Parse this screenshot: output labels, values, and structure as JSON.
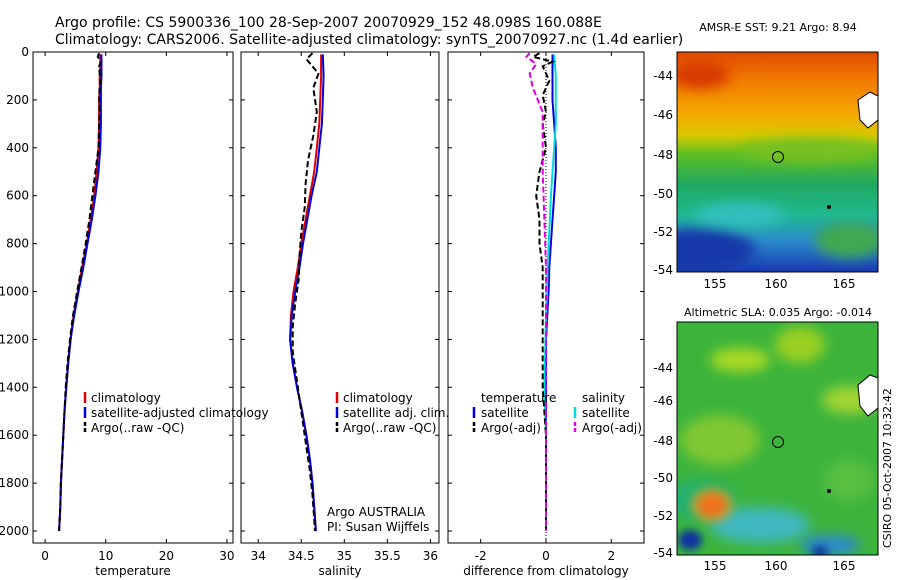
{
  "header": {
    "line1": "Argo profile: CS 5900336_100 28-Sep-2007 20070929_152 48.098S 160.088E",
    "line2": "Climatology: CARS2006. Satellite-adjusted climatology: synTS_20070927.nc (1.4d earlier)"
  },
  "side_label": "CSIRO 05-Oct-2007 10:32:42",
  "colors": {
    "climatology": "#e00000",
    "satellite": "#0000dd",
    "argo": "#000000",
    "satellite_diff": "#00dddd",
    "argo_adj_salinity": "#dd00dd"
  },
  "chart_data": [
    {
      "type": "line",
      "panel": "temperature",
      "xlabel": "temperature",
      "ylabel": "",
      "xlim": [
        -2,
        31
      ],
      "ylim": [
        2050,
        0
      ],
      "xticks": [
        "0",
        "10",
        "20",
        "30"
      ],
      "xtick_values": [
        0,
        10,
        20,
        30
      ],
      "yticks": [
        "0",
        "200",
        "400",
        "600",
        "800",
        "1000",
        "1200",
        "1400",
        "1600",
        "1800",
        "2000"
      ],
      "ytick_values": [
        0,
        200,
        400,
        600,
        800,
        1000,
        1200,
        1400,
        1600,
        1800,
        2000
      ],
      "legend": [
        "climatology",
        "satellite-adjusted climatology",
        "Argo(..raw -QC)"
      ],
      "series": [
        {
          "name": "climatology",
          "color": "#e00000",
          "style": "solid",
          "points": [
            [
              9.1,
              10
            ],
            [
              9.1,
              50
            ],
            [
              9.0,
              100
            ],
            [
              9.0,
              150
            ],
            [
              8.9,
              200
            ],
            [
              8.9,
              300
            ],
            [
              8.8,
              400
            ],
            [
              8.5,
              500
            ],
            [
              8.1,
              600
            ],
            [
              7.5,
              700
            ],
            [
              6.9,
              800
            ],
            [
              6.1,
              900
            ],
            [
              5.4,
              1000
            ],
            [
              4.7,
              1100
            ],
            [
              4.2,
              1200
            ],
            [
              3.8,
              1300
            ],
            [
              3.5,
              1400
            ],
            [
              3.2,
              1500
            ],
            [
              3.0,
              1600
            ],
            [
              2.8,
              1700
            ],
            [
              2.6,
              1800
            ],
            [
              2.5,
              1900
            ],
            [
              2.3,
              2000
            ]
          ]
        },
        {
          "name": "satellite-adjusted climatology",
          "color": "#0000dd",
          "style": "solid",
          "points": [
            [
              9.3,
              10
            ],
            [
              9.3,
              50
            ],
            [
              9.3,
              100
            ],
            [
              9.2,
              150
            ],
            [
              9.2,
              200
            ],
            [
              9.2,
              300
            ],
            [
              9.1,
              400
            ],
            [
              8.8,
              500
            ],
            [
              8.3,
              600
            ],
            [
              7.7,
              700
            ],
            [
              7.0,
              800
            ],
            [
              6.3,
              900
            ],
            [
              5.5,
              1000
            ],
            [
              4.8,
              1100
            ],
            [
              4.2,
              1200
            ],
            [
              3.8,
              1300
            ],
            [
              3.5,
              1400
            ],
            [
              3.2,
              1500
            ],
            [
              3.0,
              1600
            ],
            [
              2.8,
              1700
            ],
            [
              2.6,
              1800
            ],
            [
              2.5,
              1900
            ],
            [
              2.3,
              2000
            ]
          ]
        },
        {
          "name": "Argo(..raw -QC)",
          "color": "#000000",
          "style": "dashed",
          "points": [
            [
              8.9,
              5
            ],
            [
              8.7,
              20
            ],
            [
              9.2,
              40
            ],
            [
              8.9,
              60
            ],
            [
              9.1,
              120
            ],
            [
              8.9,
              180
            ],
            [
              9.0,
              250
            ],
            [
              8.9,
              300
            ],
            [
              8.8,
              400
            ],
            [
              8.3,
              500
            ],
            [
              7.8,
              600
            ],
            [
              7.3,
              700
            ],
            [
              6.7,
              800
            ],
            [
              6.0,
              900
            ],
            [
              5.3,
              1000
            ],
            [
              4.6,
              1100
            ],
            [
              4.1,
              1200
            ],
            [
              3.7,
              1300
            ],
            [
              3.4,
              1400
            ],
            [
              3.2,
              1500
            ],
            [
              3.0,
              1600
            ],
            [
              2.8,
              1700
            ],
            [
              2.6,
              1800
            ],
            [
              2.5,
              1900
            ],
            [
              2.3,
              2000
            ]
          ]
        }
      ]
    },
    {
      "type": "line",
      "panel": "salinity",
      "xlabel": "salinity",
      "ylabel": "",
      "xlim": [
        33.8,
        36.1
      ],
      "ylim": [
        2050,
        0
      ],
      "xticks": [
        "34",
        "34.5",
        "35",
        "35.5",
        "36"
      ],
      "xtick_values": [
        34,
        34.5,
        35,
        35.5,
        36
      ],
      "legend": [
        "climatology",
        "satellite adj. clim.",
        "Argo(..raw -QC)"
      ],
      "annotation": [
        "Argo AUSTRALIA",
        "PI: Susan Wijffels"
      ],
      "series": [
        {
          "name": "climatology",
          "color": "#e00000",
          "style": "solid",
          "points": [
            [
              34.73,
              10
            ],
            [
              34.73,
              100
            ],
            [
              34.72,
              200
            ],
            [
              34.71,
              300
            ],
            [
              34.68,
              400
            ],
            [
              34.65,
              500
            ],
            [
              34.6,
              600
            ],
            [
              34.55,
              700
            ],
            [
              34.5,
              800
            ],
            [
              34.46,
              900
            ],
            [
              34.41,
              1000
            ],
            [
              34.38,
              1100
            ],
            [
              34.37,
              1200
            ],
            [
              34.4,
              1300
            ],
            [
              34.45,
              1400
            ],
            [
              34.51,
              1500
            ],
            [
              34.56,
              1600
            ],
            [
              34.6,
              1700
            ],
            [
              34.63,
              1800
            ],
            [
              34.65,
              1900
            ],
            [
              34.67,
              2000
            ]
          ]
        },
        {
          "name": "satellite adj. clim.",
          "color": "#0000dd",
          "style": "solid",
          "points": [
            [
              34.75,
              10
            ],
            [
              34.76,
              100
            ],
            [
              34.75,
              200
            ],
            [
              34.74,
              300
            ],
            [
              34.71,
              400
            ],
            [
              34.68,
              500
            ],
            [
              34.62,
              600
            ],
            [
              34.57,
              700
            ],
            [
              34.52,
              800
            ],
            [
              34.48,
              900
            ],
            [
              34.43,
              1000
            ],
            [
              34.39,
              1100
            ],
            [
              34.37,
              1200
            ],
            [
              34.4,
              1300
            ],
            [
              34.45,
              1400
            ],
            [
              34.51,
              1500
            ],
            [
              34.56,
              1600
            ],
            [
              34.6,
              1700
            ],
            [
              34.63,
              1800
            ],
            [
              34.65,
              1900
            ],
            [
              34.67,
              2000
            ]
          ]
        },
        {
          "name": "Argo(..raw -QC)",
          "color": "#000000",
          "style": "dashed",
          "points": [
            [
              34.63,
              5
            ],
            [
              34.56,
              30
            ],
            [
              34.63,
              60
            ],
            [
              34.7,
              90
            ],
            [
              34.64,
              150
            ],
            [
              34.68,
              250
            ],
            [
              34.64,
              350
            ],
            [
              34.58,
              450
            ],
            [
              34.55,
              550
            ],
            [
              34.54,
              650
            ],
            [
              34.5,
              750
            ],
            [
              34.48,
              850
            ],
            [
              34.47,
              950
            ],
            [
              34.43,
              1050
            ],
            [
              34.4,
              1150
            ],
            [
              34.4,
              1250
            ],
            [
              34.44,
              1350
            ],
            [
              34.48,
              1450
            ],
            [
              34.52,
              1550
            ],
            [
              34.56,
              1650
            ],
            [
              34.6,
              1750
            ],
            [
              34.63,
              1850
            ],
            [
              34.66,
              2000
            ]
          ]
        }
      ]
    },
    {
      "type": "line",
      "panel": "difference",
      "xlabel": "difference from climatology",
      "ylabel": "",
      "xlim": [
        -3,
        3
      ],
      "ylim": [
        2050,
        0
      ],
      "xticks": [
        "-2",
        "0",
        "2"
      ],
      "xtick_values": [
        -2,
        0,
        2
      ],
      "legend_left_title": "temperature",
      "legend_right_title": "salinity",
      "legend_left": [
        "satellite",
        "Argo(-adj)"
      ],
      "legend_right": [
        "satellite",
        "Argo(-adj)"
      ],
      "series": [
        {
          "name": "temperature satellite",
          "color": "#0000dd",
          "style": "solid",
          "points": [
            [
              0.2,
              10
            ],
            [
              0.2,
              100
            ],
            [
              0.2,
              200
            ],
            [
              0.25,
              300
            ],
            [
              0.3,
              400
            ],
            [
              0.3,
              500
            ],
            [
              0.25,
              600
            ],
            [
              0.2,
              700
            ],
            [
              0.15,
              800
            ],
            [
              0.1,
              900
            ],
            [
              0.08,
              1000
            ],
            [
              0.04,
              1100
            ],
            [
              0.0,
              1200
            ],
            [
              0.0,
              1400
            ],
            [
              0.0,
              1600
            ],
            [
              0.0,
              1800
            ],
            [
              0.0,
              2000
            ]
          ]
        },
        {
          "name": "salinity satellite",
          "color": "#00dddd",
          "style": "solid",
          "points": [
            [
              0.25,
              10
            ],
            [
              0.3,
              100
            ],
            [
              0.3,
              200
            ],
            [
              0.3,
              300
            ],
            [
              0.25,
              400
            ],
            [
              0.2,
              500
            ],
            [
              0.15,
              600
            ],
            [
              0.12,
              700
            ],
            [
              0.08,
              800
            ],
            [
              0.05,
              900
            ],
            [
              0.03,
              1000
            ],
            [
              0.0,
              1100
            ],
            [
              -0.05,
              1400
            ],
            [
              0.0,
              1600
            ],
            [
              0.0,
              2000
            ]
          ]
        },
        {
          "name": "temperature Argo(-adj)",
          "color": "#000000",
          "style": "dashed",
          "points": [
            [
              -0.2,
              5
            ],
            [
              -0.4,
              20
            ],
            [
              0.2,
              40
            ],
            [
              -0.1,
              60
            ],
            [
              0.1,
              120
            ],
            [
              -0.1,
              180
            ],
            [
              0.0,
              250
            ],
            [
              -0.1,
              300
            ],
            [
              0.0,
              400
            ],
            [
              -0.2,
              500
            ],
            [
              -0.3,
              600
            ],
            [
              -0.2,
              700
            ],
            [
              -0.2,
              800
            ],
            [
              -0.1,
              900
            ],
            [
              -0.1,
              1000
            ],
            [
              -0.1,
              1100
            ],
            [
              -0.1,
              1200
            ],
            [
              -0.1,
              1400
            ],
            [
              0.0,
              1600
            ],
            [
              0.0,
              1800
            ],
            [
              0.0,
              2000
            ]
          ]
        },
        {
          "name": "salinity Argo(-adj)",
          "color": "#dd00dd",
          "style": "dashed",
          "points": [
            [
              -0.5,
              5
            ],
            [
              -0.6,
              20
            ],
            [
              -0.3,
              50
            ],
            [
              -0.5,
              90
            ],
            [
              -0.4,
              150
            ],
            [
              -0.1,
              250
            ],
            [
              -0.1,
              400
            ],
            [
              -0.1,
              500
            ],
            [
              -0.05,
              700
            ],
            [
              0.0,
              900
            ],
            [
              0.0,
              1200
            ],
            [
              0.0,
              1500
            ],
            [
              0.0,
              1800
            ],
            [
              0.0,
              2000
            ]
          ]
        }
      ]
    },
    {
      "type": "heatmap",
      "panel": "sst_map",
      "title": "AMSR-E SST: 9.21  Argo: 8.94",
      "xlim": [
        152.6,
        167.6
      ],
      "ylim": [
        -54,
        -42
      ],
      "xticks": [
        "155",
        "160",
        "165"
      ],
      "xtick_values": [
        155,
        160,
        165
      ],
      "yticks": [
        "-44",
        "-46",
        "-48",
        "-50",
        "-52",
        "-54"
      ],
      "ytick_values": [
        -44,
        -46,
        -48,
        -50,
        -52,
        -54
      ],
      "float_position": [
        160.088,
        -48.098
      ]
    },
    {
      "type": "heatmap",
      "panel": "sla_map",
      "title": "Altimetric SLA: 0.035  Argo: -0.014",
      "xlim": [
        152.6,
        167.6
      ],
      "ylim": [
        -54,
        -42
      ],
      "xticks": [
        "155",
        "160",
        "165"
      ],
      "xtick_values": [
        155,
        160,
        165
      ],
      "yticks": [
        "-44",
        "-46",
        "-48",
        "-50",
        "-52",
        "-54"
      ],
      "ytick_values": [
        -44,
        -46,
        -48,
        -50,
        -52,
        -54
      ],
      "float_position": [
        160.088,
        -48.098
      ]
    }
  ]
}
